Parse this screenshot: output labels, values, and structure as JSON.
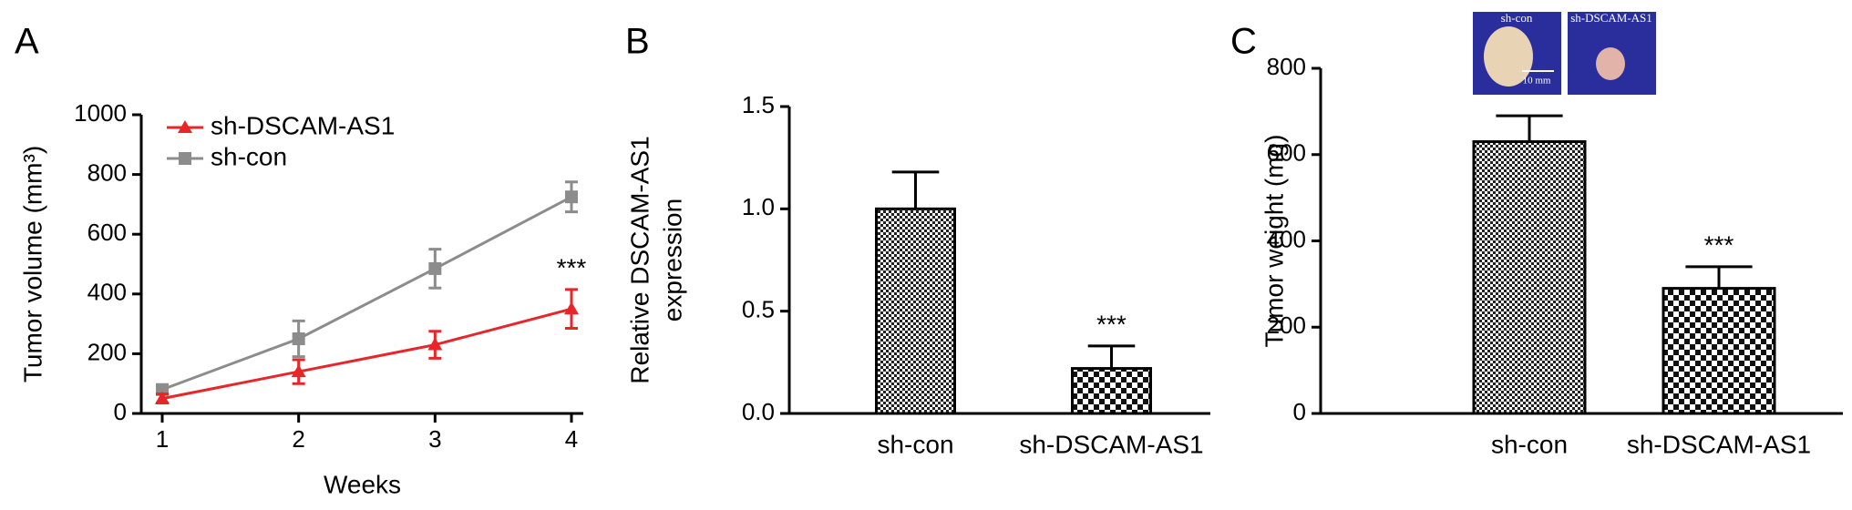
{
  "chart_data": [
    {
      "type": "line",
      "panel": "A",
      "xlabel": "Weeks",
      "ylabel": "Tumor volume (mm³)",
      "x": [
        1,
        2,
        3,
        4
      ],
      "xlim": [
        1,
        4
      ],
      "xticks": [
        1,
        2,
        3,
        4
      ],
      "ylim": [
        0,
        1000
      ],
      "yticks": [
        0,
        200,
        400,
        600,
        800,
        1000
      ],
      "legend": "upper left",
      "annotation": "***",
      "series": [
        {
          "name": "sh-DSCAM-AS1",
          "color": "#e8262a",
          "marker": "triangle",
          "values": [
            50,
            140,
            230,
            350
          ],
          "errors": [
            15,
            40,
            45,
            65
          ]
        },
        {
          "name": "sh-con",
          "color": "#8c8c8c",
          "marker": "square",
          "values": [
            80,
            250,
            485,
            725
          ],
          "errors": [
            10,
            60,
            65,
            50
          ]
        }
      ]
    },
    {
      "type": "bar",
      "panel": "B",
      "ylabel": [
        "Relative DSCAM-AS1",
        "expression"
      ],
      "categories": [
        "sh-con",
        "sh-DSCAM-AS1"
      ],
      "values": [
        1.0,
        0.22
      ],
      "errors": [
        0.18,
        0.11
      ],
      "ylim": [
        0,
        1.5
      ],
      "yticks": [
        {
          "value": 0,
          "label": "0.0"
        },
        0.5,
        {
          "value": 1,
          "label": "1.0"
        },
        1.5
      ],
      "annotation": "***"
    },
    {
      "type": "bar",
      "panel": "C",
      "ylabel": "Tumor weight (mg)",
      "categories": [
        "sh-con",
        "sh-DSCAM-AS1"
      ],
      "values": [
        630,
        290
      ],
      "errors": [
        60,
        50
      ],
      "ylim": [
        0,
        800
      ],
      "yticks": [
        0,
        200,
        400,
        600,
        800
      ],
      "annotation": "***",
      "inset_labels": [
        "sh-con",
        "sh-DSCAM-AS1"
      ],
      "scale_bar": "10 mm"
    }
  ]
}
